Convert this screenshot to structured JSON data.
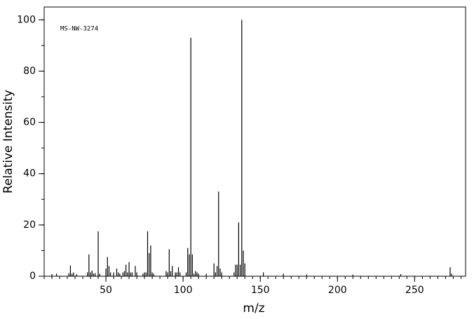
{
  "chart_data": {
    "type": "stick",
    "annotation": "MS-NW-3274",
    "x_label": "m/z",
    "y_label": "Relative Intensity",
    "color": "#000000",
    "x": [
      15,
      18,
      26,
      27,
      28,
      29,
      31,
      38,
      39,
      40,
      41,
      42,
      43,
      45,
      46,
      50,
      51,
      52,
      53,
      55,
      57,
      58,
      59,
      61,
      62,
      63,
      64,
      65,
      66,
      67,
      69,
      70,
      74,
      75,
      76,
      77,
      78,
      79,
      80,
      81,
      89,
      90,
      91,
      92,
      93,
      95,
      96,
      97,
      98,
      102,
      103,
      104,
      105,
      106,
      107,
      108,
      109,
      110,
      115,
      120,
      121,
      122,
      123,
      124,
      125,
      133,
      134,
      135,
      136,
      137,
      138,
      139,
      140,
      152,
      165,
      180,
      210,
      241,
      273,
      274
    ],
    "values": [
      0.8,
      1,
      1.2,
      4.2,
      1,
      1.5,
      0.8,
      1.5,
      8.5,
      1.5,
      2.2,
      1,
      1.2,
      17.5,
      1,
      3,
      7.5,
      4,
      1.5,
      1.5,
      3,
      1.5,
      1,
      1.5,
      2,
      4.5,
      1.5,
      5.5,
      1.5,
      1.5,
      4,
      1.5,
      1,
      1.5,
      1.5,
      17.5,
      9,
      12,
      1.5,
      1,
      2,
      1.5,
      10.5,
      2,
      4,
      1.5,
      1.5,
      3.5,
      1.5,
      1.5,
      11,
      8.5,
      93,
      8.5,
      1,
      2,
      1.5,
      1,
      1,
      5,
      1.5,
      4,
      33,
      3,
      1.5,
      1.5,
      4.5,
      4.5,
      21,
      4.5,
      100,
      10,
      5,
      1.5,
      1,
      0.6,
      0.6,
      0.8,
      3.5,
      1
    ],
    "xlim": [
      10,
      283
    ],
    "ylim": [
      0,
      105
    ],
    "xticks": [
      50,
      100,
      150,
      200,
      250
    ],
    "yticks": [
      0,
      20,
      40,
      60,
      80,
      100
    ]
  }
}
